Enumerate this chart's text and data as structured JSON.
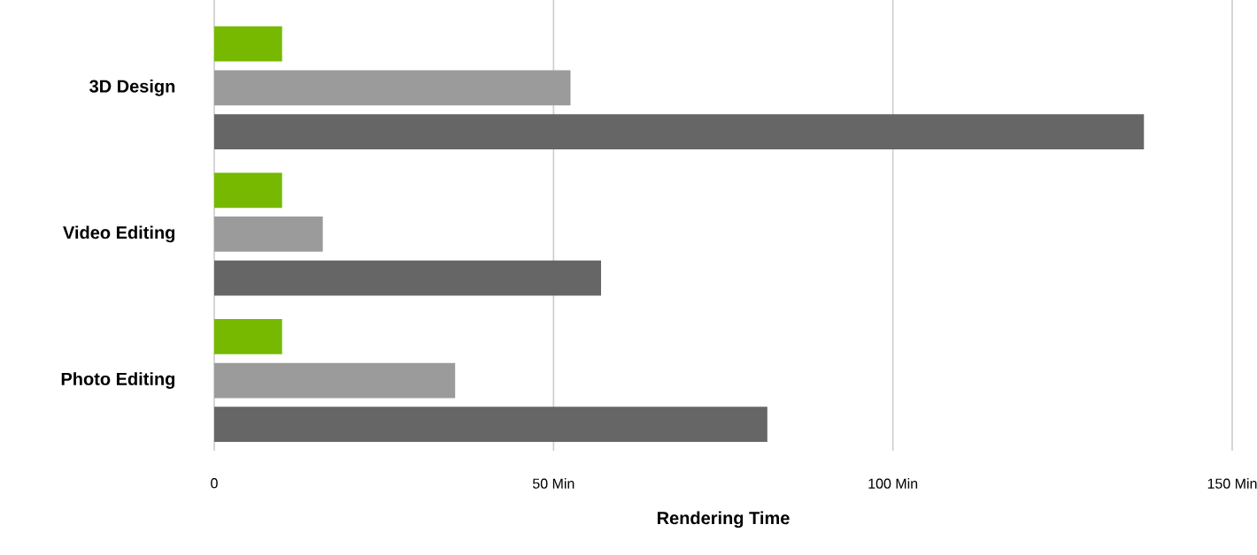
{
  "chart_data": {
    "type": "bar",
    "orientation": "horizontal",
    "categories": [
      "3D Design",
      "Video Editing",
      "Photo Editing"
    ],
    "series": [
      {
        "color": "#76b900",
        "values": [
          10,
          10,
          10
        ]
      },
      {
        "color": "#9b9b9b",
        "values": [
          52.5,
          16,
          35.5
        ]
      },
      {
        "color": "#666666",
        "values": [
          137,
          57,
          81.5
        ]
      }
    ],
    "xlim": [
      0,
      150
    ],
    "xticks": [
      0,
      {
        "value": 50,
        "label": "50 Min"
      },
      {
        "value": 100,
        "label": "100 Min"
      },
      {
        "value": 150,
        "label": "150 Min"
      }
    ],
    "xlabel": "Rendering Time",
    "grid": "x"
  }
}
